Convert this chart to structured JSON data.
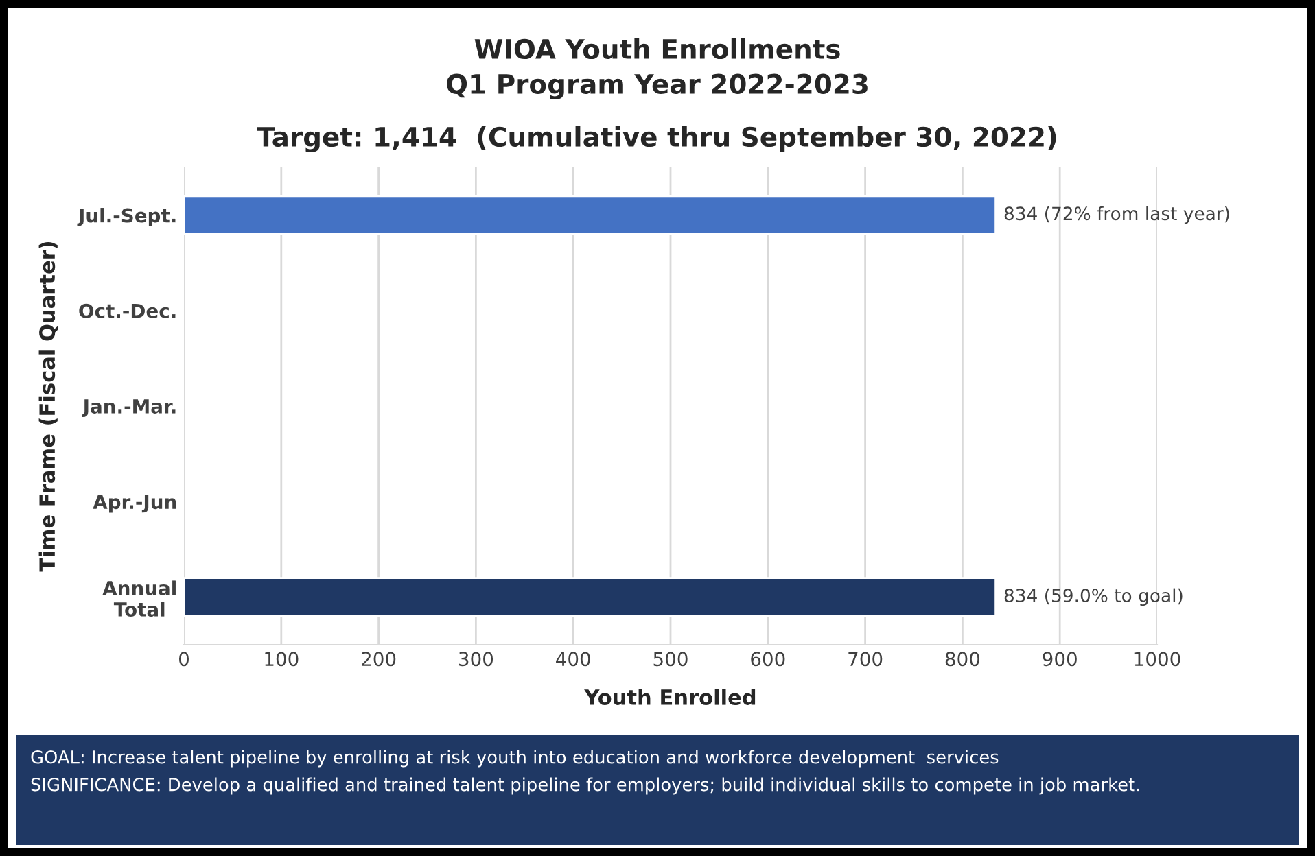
{
  "chart_data": {
    "type": "bar",
    "orientation": "horizontal",
    "title": "WIOA Youth Enrollments\nQ1 Program Year 2022-2023",
    "subtitle": "Target: 1,414  (Cumulative thru September 30, 2022)",
    "xlabel": "Youth Enrolled",
    "ylabel": "Time Frame (Fiscal Quarter)",
    "categories": [
      "Jul.-Sept.",
      "Oct.-Dec.",
      "Jan.-Mar.",
      "Apr.-Jun",
      "Annual\nTotal"
    ],
    "values": [
      834,
      null,
      null,
      null,
      834
    ],
    "colors": [
      "#4472c4",
      "#4472c4",
      "#4472c4",
      "#4472c4",
      "#1f3864"
    ],
    "value_labels": [
      "834 (72% from last year)",
      null,
      null,
      null,
      "834 (59.0% to goal)"
    ],
    "xlim": [
      0,
      1000
    ],
    "xticks": [
      0,
      100,
      200,
      300,
      400,
      500,
      600,
      700,
      800,
      900,
      1000
    ],
    "grid": "x",
    "legend": false,
    "annotations": [
      "GOAL: Increase talent pipeline by enrolling at risk youth into education and workforce development  services",
      "SIGNIFICANCE: Develop a qualified and trained talent pipeline for employers; build individual skills to compete in job market."
    ]
  }
}
